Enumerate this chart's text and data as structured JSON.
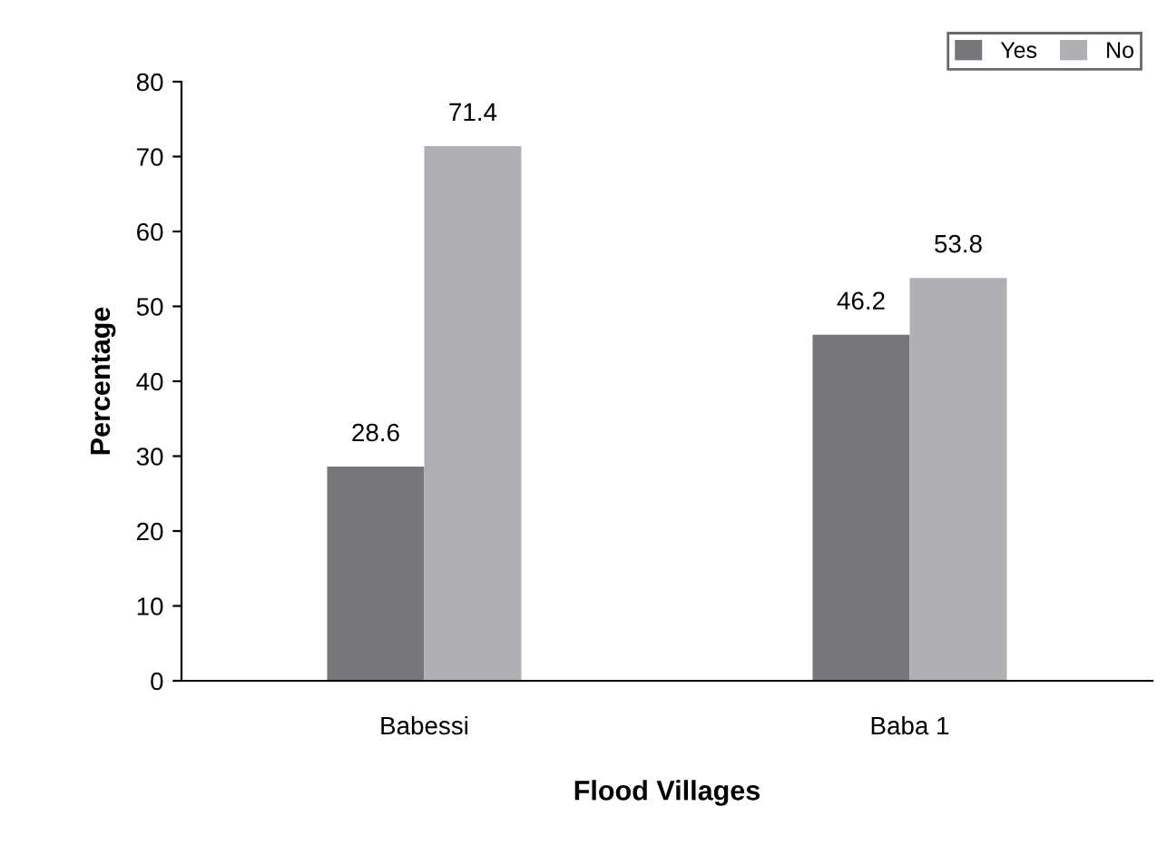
{
  "chart_data": {
    "type": "bar",
    "xlabel": "Flood Villages",
    "ylabel": "Percentage",
    "categories": [
      "Babessi",
      "Baba 1"
    ],
    "series": [
      {
        "name": "Yes",
        "color": "#77777b",
        "values": [
          28.6,
          46.2
        ]
      },
      {
        "name": "No",
        "color": "#b0b0b4",
        "values": [
          71.4,
          53.8
        ]
      }
    ],
    "ylim": [
      0,
      80
    ],
    "yticks": [
      0,
      10,
      20,
      30,
      40,
      50,
      60,
      70,
      80
    ],
    "data_labels": true,
    "grid": false,
    "legend": "top right"
  }
}
